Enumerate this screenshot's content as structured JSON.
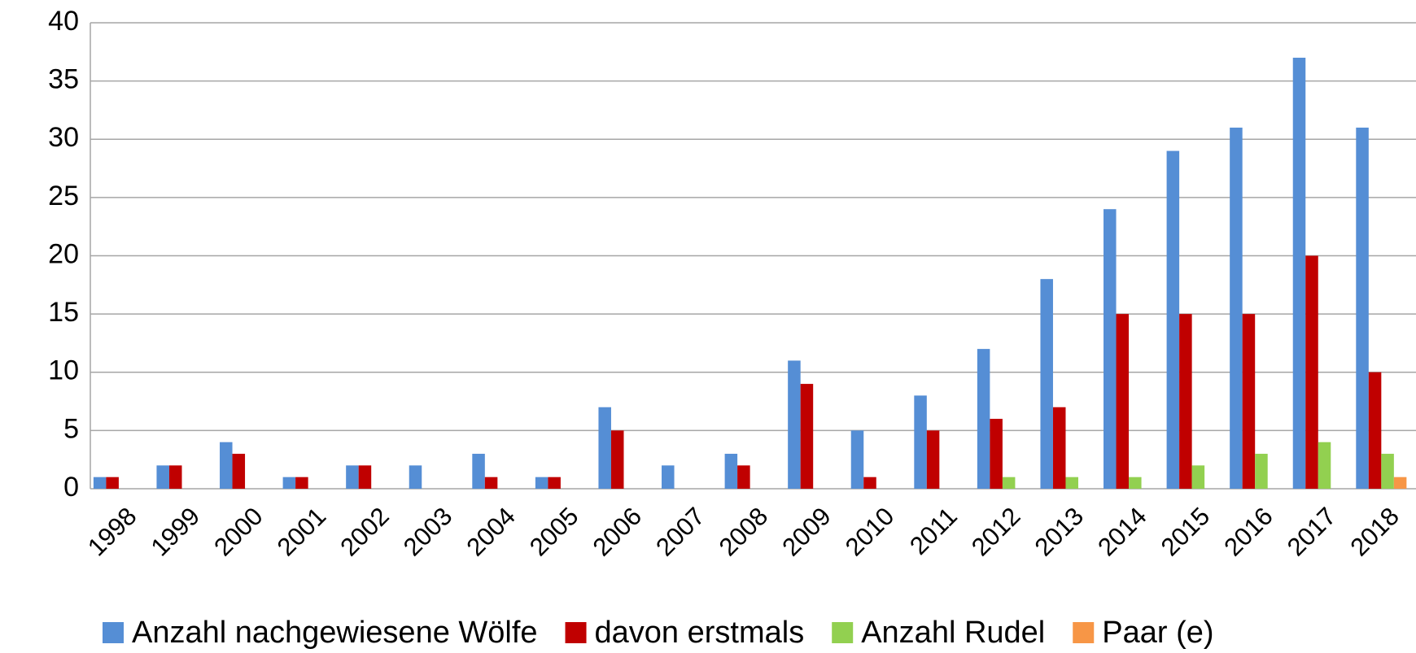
{
  "chart_data": {
    "type": "bar",
    "categories": [
      "1998",
      "1999",
      "2000",
      "2001",
      "2002",
      "2003",
      "2004",
      "2005",
      "2006",
      "2007",
      "2008",
      "2009",
      "2010",
      "2011",
      "2012",
      "2013",
      "2014",
      "2015",
      "2016",
      "2017",
      "2018"
    ],
    "series": [
      {
        "name": "Anzahl nachgewiesene Wölfe",
        "color": "#558ed5",
        "values": [
          1,
          2,
          4,
          1,
          2,
          2,
          3,
          1,
          7,
          2,
          3,
          11,
          5,
          8,
          12,
          18,
          24,
          29,
          31,
          37,
          31
        ]
      },
      {
        "name": "davon erstmals",
        "color": "#c00000",
        "values": [
          1,
          2,
          3,
          1,
          2,
          0,
          1,
          1,
          5,
          0,
          2,
          9,
          1,
          5,
          6,
          7,
          15,
          15,
          15,
          20,
          10
        ]
      },
      {
        "name": "Anzahl Rudel",
        "color": "#92d050",
        "values": [
          0,
          0,
          0,
          0,
          0,
          0,
          0,
          0,
          0,
          0,
          0,
          0,
          0,
          0,
          1,
          1,
          1,
          2,
          3,
          4,
          3
        ]
      },
      {
        "name": "Paar (e)",
        "color": "#f79646",
        "values": [
          0,
          0,
          0,
          0,
          0,
          0,
          0,
          0,
          0,
          0,
          0,
          0,
          0,
          0,
          0,
          0,
          0,
          0,
          0,
          0,
          1
        ]
      }
    ],
    "ylim": [
      0,
      40
    ],
    "yticks": [
      0,
      5,
      10,
      15,
      20,
      25,
      30,
      35,
      40
    ],
    "grid": true,
    "legend": "bottom"
  }
}
